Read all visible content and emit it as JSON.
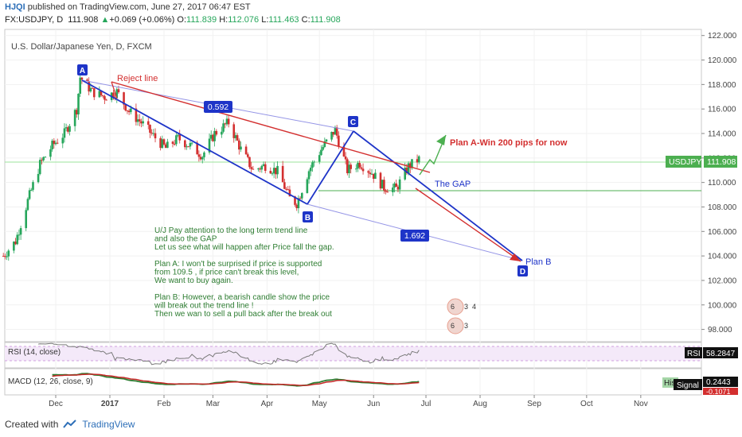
{
  "header": {
    "user": "HJQI",
    "published_text": "published on TradingView.com, June 27, 2017 06:47 EST",
    "symbol": "FX:USDJPY, D",
    "last": "111.908",
    "change": "+0.069 (+0.06%)",
    "open_label": "O:",
    "open": "111.839",
    "high_label": "H:",
    "high": "112.076",
    "low_label": "L:",
    "low": "111.463",
    "close_label": "C:",
    "close": "111.908"
  },
  "pane_title": "U.S. Dollar/Japanese Yen, D, FXCM",
  "chart_data": {
    "type": "candlestick",
    "y_range": [
      97,
      122.5
    ],
    "y_ticks": [
      "122.000",
      "120.000",
      "118.000",
      "116.000",
      "114.000",
      "112.000",
      "110.000",
      "108.000",
      "106.000",
      "104.000",
      "102.000",
      "100.000",
      "98.000"
    ],
    "x_ticks": [
      "Dec",
      "2017",
      "Feb",
      "Mar",
      "Apr",
      "May",
      "Jun",
      "Jul",
      "Aug",
      "Sep",
      "Oct",
      "Nov"
    ],
    "price_path": [
      [
        "2016-11-01",
        104.0
      ],
      [
        "2016-11-08",
        105.2
      ],
      [
        "2016-11-15",
        108.5
      ],
      [
        "2016-11-22",
        111.5
      ],
      [
        "2016-11-29",
        113.0
      ],
      [
        "2016-12-06",
        114.0
      ],
      [
        "2016-12-13",
        116.0
      ],
      [
        "2016-12-15",
        118.6
      ],
      [
        "2016-12-22",
        117.4
      ],
      [
        "2016-12-29",
        117.0
      ],
      [
        "2017-01-05",
        117.4
      ],
      [
        "2017-01-12",
        115.8
      ],
      [
        "2017-01-19",
        114.9
      ],
      [
        "2017-01-26",
        113.8
      ],
      [
        "2017-02-02",
        112.8
      ],
      [
        "2017-02-09",
        113.6
      ],
      [
        "2017-02-16",
        113.0
      ],
      [
        "2017-02-23",
        112.2
      ],
      [
        "2017-03-02",
        114.0
      ],
      [
        "2017-03-10",
        114.9
      ],
      [
        "2017-03-17",
        112.7
      ],
      [
        "2017-03-24",
        111.0
      ],
      [
        "2017-03-31",
        111.4
      ],
      [
        "2017-04-07",
        110.9
      ],
      [
        "2017-04-14",
        108.7
      ],
      [
        "2017-04-18",
        108.3
      ],
      [
        "2017-04-25",
        111.0
      ],
      [
        "2017-05-02",
        112.7
      ],
      [
        "2017-05-10",
        114.3
      ],
      [
        "2017-05-17",
        111.0
      ],
      [
        "2017-05-24",
        111.6
      ],
      [
        "2017-05-31",
        110.8
      ],
      [
        "2017-06-07",
        109.6
      ],
      [
        "2017-06-14",
        109.5
      ],
      [
        "2017-06-21",
        111.3
      ],
      [
        "2017-06-27",
        111.9
      ]
    ],
    "current_price_label": "USDJPY",
    "current_price": "111.908",
    "rsi": {
      "label": "RSI (14, close)",
      "value": "58.2847"
    },
    "macd": {
      "label": "MACD (12, 26, close, 9)",
      "hist_label": "His",
      "signal_label": "Signal",
      "value1": "0.2443",
      "value2": "-0.1071"
    }
  },
  "annotations": {
    "reject_line": "Reject line",
    "ratio1": "0.592",
    "ratio2": "1.692",
    "point_a": "A",
    "point_b": "B",
    "point_c": "C",
    "point_d": "D",
    "plan_a": "Plan A-Win 200 pips for now",
    "plan_b": "Plan B",
    "gap": "The GAP",
    "note_lines": [
      "U/J Pay attention to the long term trend line",
      "and also the GAP",
      "Let us see what will happen after Price  fall the gap.",
      "",
      "Plan A: I won't be surprised if price  is supported",
      "from 109.5 , if price can't break this level,",
      "We want to buy again.",
      "",
      "Plan B: However, a bearish candle show the price",
      "will break out the trend line !",
      "Then we wan to sell a pull back after the break out"
    ]
  },
  "footer": {
    "created_with": "Created with",
    "brand": "TradingView"
  },
  "colors": {
    "bull": "#26a65b",
    "bear": "#d32f2f",
    "blue": "#1e34c8",
    "red": "#d32f2f",
    "green_arrow": "#4caf50",
    "lavender": "#8a8ae0"
  }
}
